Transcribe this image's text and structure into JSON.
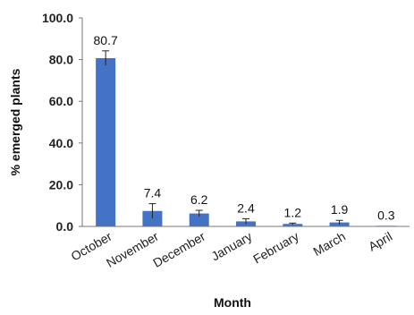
{
  "chart_data": {
    "type": "bar",
    "xlabel": "Month",
    "ylabel": "% emerged plants",
    "categories": [
      "October",
      "November",
      "December",
      "January",
      "February",
      "March",
      "April"
    ],
    "values": [
      80.7,
      7.4,
      6.2,
      2.4,
      1.2,
      1.9,
      0.3
    ],
    "data_labels": [
      "80.7",
      "7.4",
      "6.2",
      "2.4",
      "1.2",
      "1.9",
      "0.3"
    ],
    "error_bars": [
      3.5,
      3.5,
      1.5,
      1.3,
      0.4,
      1.0,
      0.0
    ],
    "ylim": [
      0,
      100
    ],
    "yticks": [
      0,
      20,
      40,
      60,
      80,
      100
    ],
    "ytick_labels": [
      "0.0",
      "20.0",
      "40.0",
      "60.0",
      "80.0",
      "100.0"
    ],
    "grid": false,
    "bar_color": "#4472C4",
    "legend": "none"
  }
}
